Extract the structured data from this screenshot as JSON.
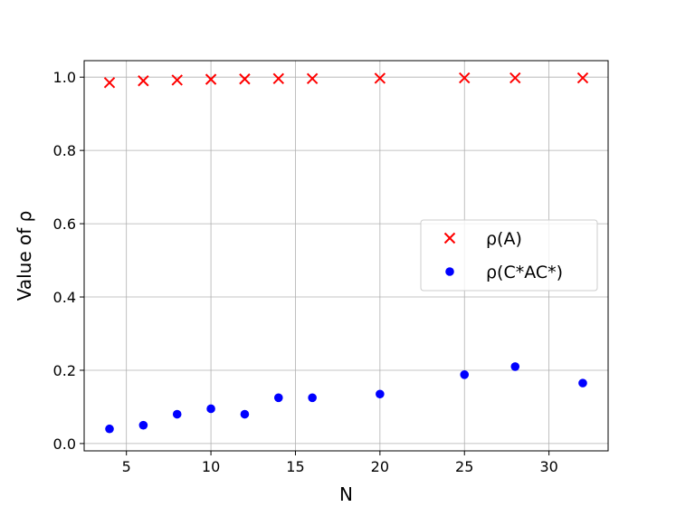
{
  "chart_data": {
    "type": "scatter",
    "xlabel": "N",
    "ylabel": "Value of ρ",
    "xlim": [
      2.5,
      33.5
    ],
    "ylim": [
      -0.02,
      1.045
    ],
    "xticks": [
      5,
      10,
      15,
      20,
      25,
      30
    ],
    "yticks": [
      0.0,
      0.2,
      0.4,
      0.6,
      0.8,
      1.0
    ],
    "grid": true,
    "legend_position": "center-right",
    "series": [
      {
        "name": "ρ(A)",
        "marker": "x",
        "color": "#ff0000",
        "x": [
          4,
          6,
          8,
          10,
          12,
          14,
          16,
          20,
          25,
          28,
          32
        ],
        "y": [
          0.985,
          0.99,
          0.992,
          0.994,
          0.995,
          0.996,
          0.996,
          0.997,
          0.998,
          0.998,
          0.998
        ]
      },
      {
        "name": "ρ(C*AC*)",
        "marker": "o",
        "color": "#0000ff",
        "x": [
          4,
          6,
          8,
          10,
          12,
          14,
          16,
          20,
          25,
          28,
          32
        ],
        "y": [
          0.04,
          0.05,
          0.08,
          0.095,
          0.08,
          0.125,
          0.125,
          0.135,
          0.188,
          0.21,
          0.165
        ]
      }
    ]
  }
}
